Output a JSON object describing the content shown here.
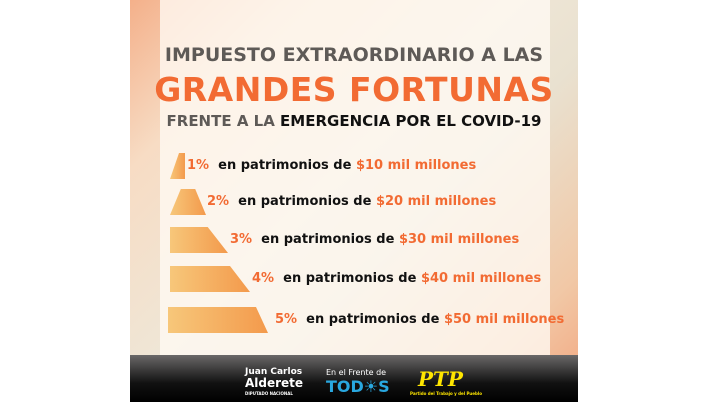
{
  "title": {
    "line1": "IMPUESTO EXTRAORDINARIO A LAS",
    "line2": "GRANDES FORTUNAS",
    "line3_a": "FRENTE A LA",
    "line3_b": "EMERGENCIA POR EL COVID-19"
  },
  "rows": [
    {
      "pct": "1%",
      "mid": "en patrimonios de",
      "amount": "$10 mil millones"
    },
    {
      "pct": "2%",
      "mid": "en patrimonios de",
      "amount": "$20 mil millones"
    },
    {
      "pct": "3%",
      "mid": "en patrimonios de",
      "amount": "$30 mil millones"
    },
    {
      "pct": "4%",
      "mid": "en patrimonios de",
      "amount": "$40 mil millones"
    },
    {
      "pct": "5%",
      "mid": "en patrimonios de",
      "amount": "$50 mil millones"
    }
  ],
  "footer": {
    "name1": "Juan Carlos",
    "name2": "Alderete",
    "role": "DIPUTADO NACIONAL",
    "frente": "En el Frente de",
    "todos": "TOD☀S",
    "ptp": "PTP",
    "ptp_sub": "Partido del Trabajo y del Pueblo"
  },
  "colors": {
    "accent": "#f26b33",
    "todos": "#29a8e0",
    "ptp": "#ffe600"
  }
}
